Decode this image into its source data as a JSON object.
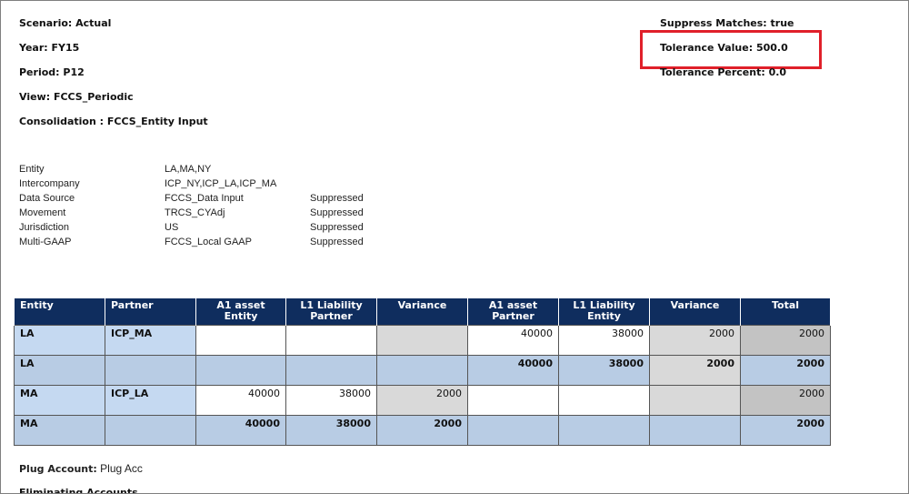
{
  "header_left": [
    "Scenario: Actual",
    "Year: FY15",
    "Period: P12",
    "View: FCCS_Periodic",
    "Consolidation : FCCS_Entity Input"
  ],
  "header_right": [
    "Suppress Matches: true",
    "Tolerance Value: 500.0",
    "Tolerance Percent: 0.0"
  ],
  "parameters": [
    [
      "Entity",
      "LA,MA,NY",
      null
    ],
    [
      "Intercompany",
      "ICP_NY,ICP_LA,ICP_MA",
      null
    ],
    [
      "Data Source",
      "FCCS_Data Input",
      "Suppressed"
    ],
    [
      "Movement",
      "TRCS_CYAdj",
      "Suppressed"
    ],
    [
      "Jurisdiction",
      "US",
      "Suppressed"
    ],
    [
      "Multi-GAAP",
      "FCCS_Local GAAP",
      "Suppressed"
    ]
  ],
  "table": {
    "columns": [
      "Entity",
      "Partner",
      "A1 asset Entity",
      "L1 Liability Partner",
      "Variance",
      "A1 asset Partner",
      "L1 Liability Entity",
      "Variance",
      "Total"
    ],
    "rows": [
      [
        "LA",
        "ICP_MA",
        null,
        null,
        null,
        40000,
        38000,
        2000,
        2000
      ],
      [
        "LA",
        null,
        null,
        null,
        null,
        40000,
        38000,
        2000,
        2000
      ],
      [
        "MA",
        "ICP_LA",
        40000,
        38000,
        2000,
        null,
        null,
        null,
        2000
      ],
      [
        "MA",
        null,
        40000,
        38000,
        2000,
        null,
        null,
        null,
        2000
      ]
    ]
  },
  "plug_account": {
    "label": "Plug Account:",
    "value": "Plug Acc"
  },
  "eliminating_accounts": "Eliminating Accounts"
}
